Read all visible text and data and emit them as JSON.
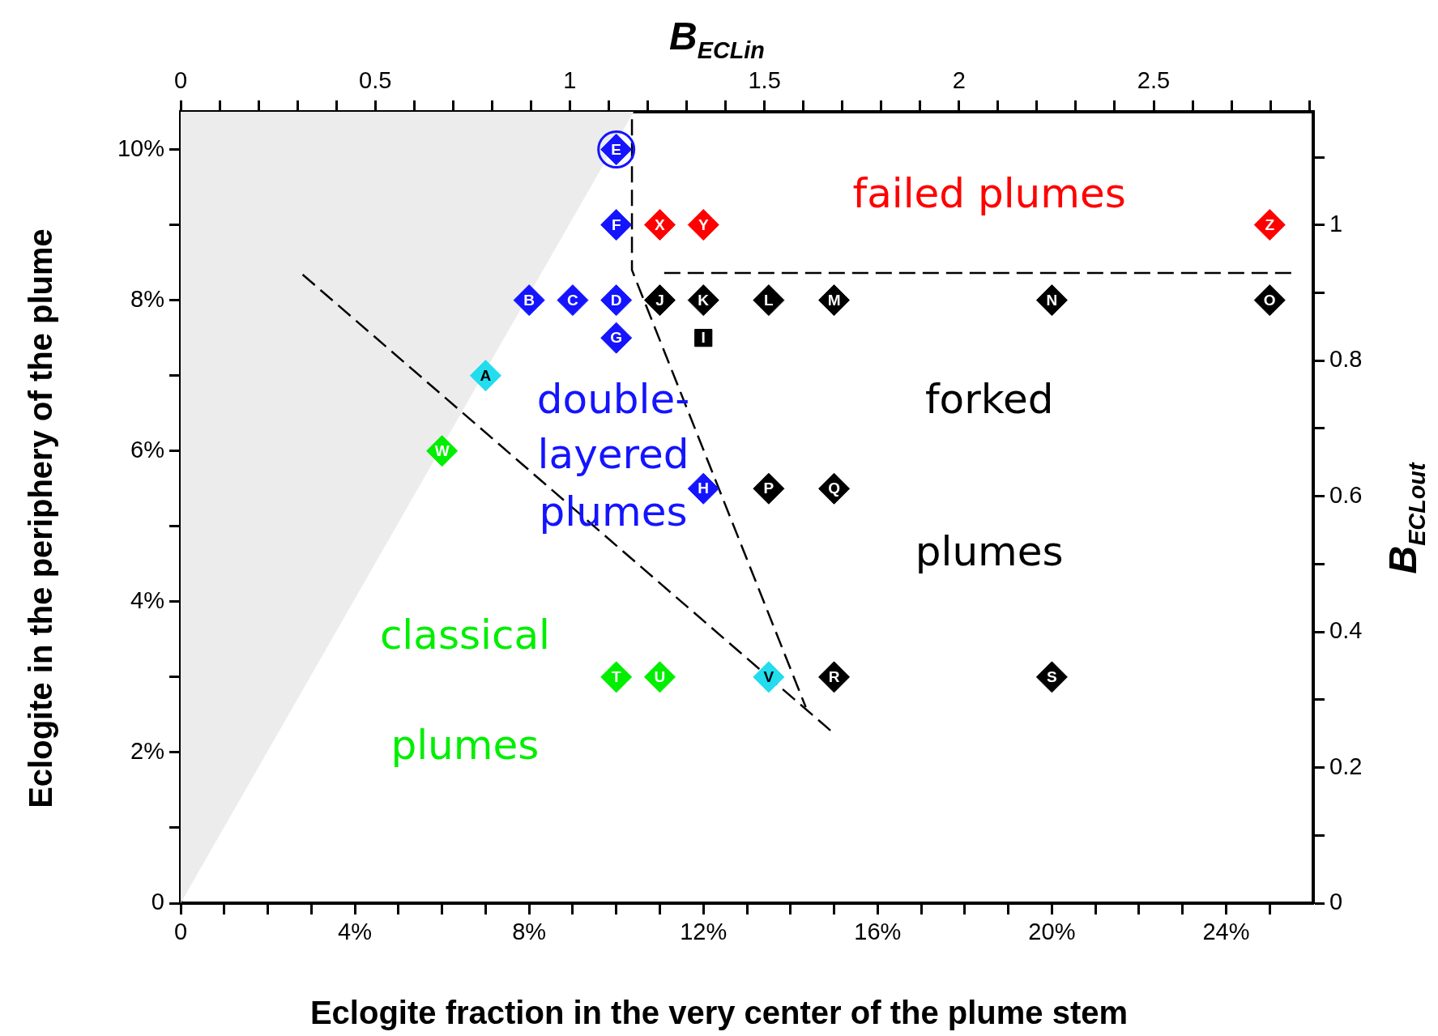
{
  "chart_data": {
    "type": "scatter",
    "xlabel": "Eclogite fraction in the very center of the plume stem",
    "ylabel": "Eclogite in the periphery of the plume",
    "x2label": "B$_{ECLin}$",
    "y2label": "B$_{ECLout}$",
    "xlim": [
      0,
      26
    ],
    "ylim": [
      0,
      10.5
    ],
    "x2lim": [
      0,
      2.91
    ],
    "y2lim": [
      0,
      1.167
    ],
    "xticks": [
      0,
      {
        "value": 1,
        "label": null
      },
      {
        "value": 2,
        "label": null
      },
      {
        "value": 3,
        "label": null
      },
      {
        "value": 4,
        "label": "4%"
      },
      {
        "value": 5,
        "label": null
      },
      {
        "value": 6,
        "label": null
      },
      {
        "value": 7,
        "label": null
      },
      {
        "value": 8,
        "label": "8%"
      },
      {
        "value": 9,
        "label": null
      },
      {
        "value": 10,
        "label": null
      },
      {
        "value": 11,
        "label": null
      },
      {
        "value": 12,
        "label": "12%"
      },
      {
        "value": 13,
        "label": null
      },
      {
        "value": 14,
        "label": null
      },
      {
        "value": 15,
        "label": null
      },
      {
        "value": 16,
        "label": "16%"
      },
      {
        "value": 17,
        "label": null
      },
      {
        "value": 18,
        "label": null
      },
      {
        "value": 19,
        "label": null
      },
      {
        "value": 20,
        "label": "20%"
      },
      {
        "value": 21,
        "label": null
      },
      {
        "value": 22,
        "label": null
      },
      {
        "value": 23,
        "label": null
      },
      {
        "value": 24,
        "label": "24%"
      },
      {
        "value": 25,
        "label": null
      }
    ],
    "yticks": [
      0,
      {
        "value": 1,
        "label": null
      },
      {
        "value": 2,
        "label": "2%"
      },
      {
        "value": 3,
        "label": null
      },
      {
        "value": 4,
        "label": "4%"
      },
      {
        "value": 5,
        "label": null
      },
      {
        "value": 6,
        "label": "6%"
      },
      {
        "value": 7,
        "label": null
      },
      {
        "value": 8,
        "label": "8%"
      },
      {
        "value": 9,
        "label": null
      },
      {
        "value": 10,
        "label": "10%"
      }
    ],
    "x2ticks": [
      0,
      {
        "value": 0.1,
        "label": null
      },
      {
        "value": 0.2,
        "label": null
      },
      {
        "value": 0.3,
        "label": null
      },
      {
        "value": 0.4,
        "label": null
      },
      0.5,
      {
        "value": 0.6,
        "label": null
      },
      {
        "value": 0.7,
        "label": null
      },
      {
        "value": 0.8,
        "label": null
      },
      {
        "value": 0.9,
        "label": null
      },
      1,
      {
        "value": 1.1,
        "label": null
      },
      {
        "value": 1.2,
        "label": null
      },
      {
        "value": 1.3,
        "label": null
      },
      {
        "value": 1.4,
        "label": null
      },
      1.5,
      {
        "value": 1.6,
        "label": null
      },
      {
        "value": 1.7,
        "label": null
      },
      {
        "value": 1.8,
        "label": null
      },
      {
        "value": 1.9,
        "label": null
      },
      2,
      {
        "value": 2.1,
        "label": null
      },
      {
        "value": 2.2,
        "label": null
      },
      {
        "value": 2.3,
        "label": null
      },
      {
        "value": 2.4,
        "label": null
      },
      2.5,
      {
        "value": 2.6,
        "label": null
      },
      {
        "value": 2.7,
        "label": null
      },
      {
        "value": 2.8,
        "label": null
      },
      {
        "value": 2.9,
        "label": null
      }
    ],
    "y2ticks": [
      0,
      {
        "value": 0.1,
        "label": null
      },
      0.2,
      {
        "value": 0.3,
        "label": null
      },
      0.4,
      {
        "value": 0.5,
        "label": null
      },
      0.6,
      {
        "value": 0.7,
        "label": null
      },
      0.8,
      {
        "value": 0.9,
        "label": null
      },
      1,
      {
        "value": 1.1,
        "label": null
      }
    ],
    "marker": "diamond",
    "grid": false,
    "legend": false,
    "annotations": [
      "failed plumes",
      "forked",
      "plumes",
      "double-",
      "layered",
      "plumes",
      "classical",
      "plumes"
    ],
    "series": [
      {
        "color": "#ff0000",
        "x": [
          11,
          12,
          25
        ],
        "values": [
          9,
          9,
          9
        ],
        "value_labels": [
          "X",
          "Y",
          "Z"
        ]
      },
      {
        "color": "#000000",
        "x": [
          11,
          12,
          13.5,
          15,
          20,
          25,
          13.5,
          15,
          15,
          20
        ],
        "values": [
          8,
          8,
          8,
          8,
          8,
          8,
          5.5,
          5.5,
          3,
          3
        ],
        "value_labels": [
          "J",
          "K",
          "L",
          "M",
          "N",
          "O",
          "P",
          "Q",
          "R",
          "S"
        ]
      },
      {
        "color": "#1414ff",
        "x": [
          10,
          10,
          8,
          9,
          10,
          10,
          12
        ],
        "values": [
          10,
          9,
          8,
          8,
          8,
          7.5,
          5.5
        ],
        "value_labels": [
          "E",
          "F",
          "B",
          "C",
          "D",
          "G",
          "H"
        ]
      },
      {
        "color": "#00ee00",
        "x": [
          6,
          10,
          11
        ],
        "values": [
          6,
          3,
          3
        ],
        "value_labels": [
          "W",
          "T",
          "U"
        ]
      },
      {
        "color": "#22ddee",
        "x": [
          7,
          13.5
        ],
        "values": [
          7,
          3
        ],
        "value_labels": [
          "A",
          "V"
        ]
      },
      {
        "color": "#000000",
        "marker": "square",
        "x": [
          12
        ],
        "values": [
          7.5
        ],
        "value_labels": [
          "I"
        ]
      },
      {
        "color": "#1414ff",
        "marker": "circle",
        "x": [
          10
        ],
        "values": [
          10
        ]
      },
      {
        "type": "area",
        "marker": "none",
        "color": "#ececec",
        "x": [
          0,
          10.4
        ],
        "values": [
          0,
          10.5
        ]
      },
      {
        "type": "line",
        "marker": "none",
        "color": "#000000",
        "line_style": "dashed",
        "x": [
          10.36,
          10.36,
          14.35
        ],
        "values": [
          10.4,
          8.4,
          2.6
        ]
      },
      {
        "type": "line",
        "marker": "none",
        "color": "#000000",
        "line_style": "dashed",
        "x": [
          2.8,
          15
        ],
        "values": [
          8.34,
          2.25
        ]
      },
      {
        "type": "line",
        "marker": "none",
        "color": "#000000",
        "line_style": "dashed",
        "x": [
          11.1,
          25.5
        ],
        "values": [
          8.36,
          8.36
        ]
      }
    ]
  }
}
